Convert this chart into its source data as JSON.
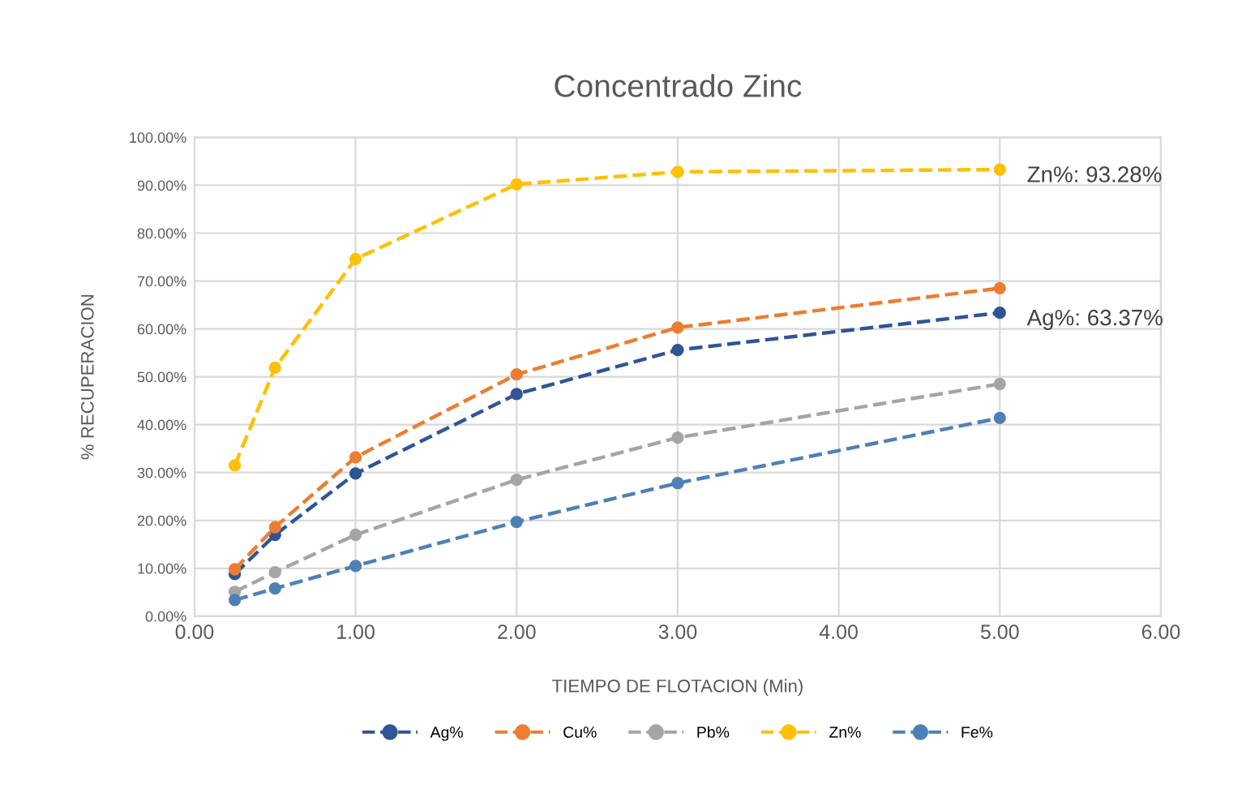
{
  "chart_data": {
    "type": "line",
    "title": "Concentrado Zinc",
    "xlabel": "TIEMPO DE FLOTACION (Min)",
    "ylabel": "% RECUPERACION",
    "x": [
      0.25,
      0.5,
      1,
      2,
      3,
      5
    ],
    "series": [
      {
        "name": "Ag%",
        "color": "#2f5597",
        "values": [
          8.8,
          17,
          29.8,
          46.4,
          55.6,
          63.37
        ]
      },
      {
        "name": "Cu%",
        "color": "#ed7d31",
        "values": [
          9.8,
          18.6,
          33.2,
          50.5,
          60.3,
          68.5
        ]
      },
      {
        "name": "Pb%",
        "color": "#a5a5a5",
        "values": [
          5.1,
          9.2,
          17,
          28.5,
          37.3,
          48.5
        ]
      },
      {
        "name": "Zn%",
        "color": "#ffc000",
        "values": [
          31.5,
          51.9,
          74.6,
          90.2,
          92.8,
          93.28
        ]
      },
      {
        "name": "Fe%",
        "color": "#4e80b8",
        "values": [
          3.4,
          5.8,
          10.5,
          19.7,
          27.8,
          41.4
        ]
      }
    ],
    "annotations": [
      {
        "text": "Zn%: 93.28%",
        "x": 5,
        "y": 93.28
      },
      {
        "text": "Ag%: 63.37%",
        "x": 5,
        "y": 63.37
      }
    ],
    "xlim": [
      0,
      6
    ],
    "xticks": [
      {
        "value": 0,
        "label": "0.00"
      },
      {
        "value": 1,
        "label": "1.00"
      },
      {
        "value": 2,
        "label": "2.00"
      },
      {
        "value": 3,
        "label": "3.00"
      },
      {
        "value": 4,
        "label": "4.00"
      },
      {
        "value": 5,
        "label": "5.00"
      },
      {
        "value": 6,
        "label": "6.00"
      }
    ],
    "ylim": [
      0,
      100
    ],
    "yticks": [
      {
        "value": 0,
        "label": "0.00%"
      },
      {
        "value": 10,
        "label": "10.00%"
      },
      {
        "value": 20,
        "label": "20.00%"
      },
      {
        "value": 30,
        "label": "30.00%"
      },
      {
        "value": 40,
        "label": "40.00%"
      },
      {
        "value": 50,
        "label": "50.00%"
      },
      {
        "value": 60,
        "label": "60.00%"
      },
      {
        "value": 70,
        "label": "70.00%"
      },
      {
        "value": 80,
        "label": "80.00%"
      },
      {
        "value": 90,
        "label": "90.00%"
      },
      {
        "value": 100,
        "label": "100.00%"
      }
    ],
    "grid": true,
    "legend": "bottom",
    "marker": "circle",
    "line_style": "dashed"
  }
}
